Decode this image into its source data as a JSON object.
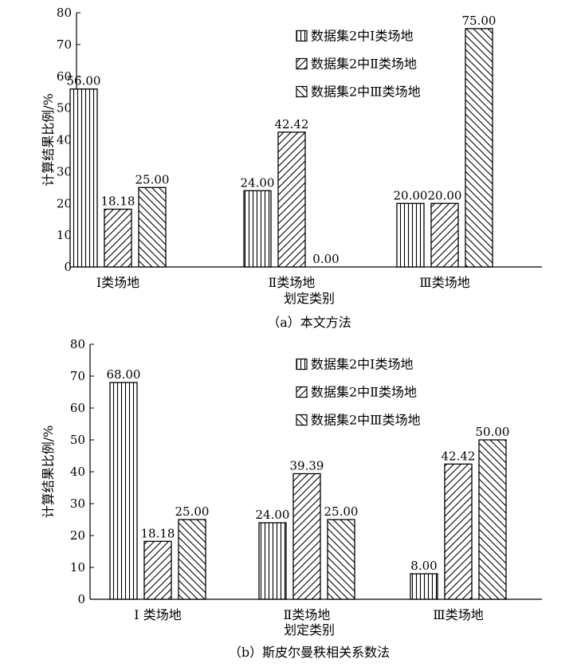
{
  "chart_data": [
    {
      "type": "bar",
      "caption": "（a）本文方法",
      "xlabel": "划定类别",
      "ylabel": "计算结果比例/%",
      "ylim": [
        0,
        80
      ],
      "yticks": [
        0,
        10,
        20,
        30,
        40,
        50,
        60,
        70,
        80
      ],
      "categories": [
        "Ⅰ类场地",
        "Ⅱ类场地",
        "Ⅲ类场地"
      ],
      "legend_position": "top-right",
      "series": [
        {
          "name": "数据集2中Ⅰ类场地",
          "pattern": "vertical",
          "values": [
            56.0,
            24.0,
            20.0
          ],
          "labels": [
            "56.00",
            "24.00",
            "20.00"
          ]
        },
        {
          "name": "数据集2中Ⅱ类场地",
          "pattern": "diag-forward",
          "values": [
            18.18,
            42.42,
            20.0
          ],
          "labels": [
            "18.18",
            "42.42",
            "20.00"
          ]
        },
        {
          "name": "数据集2中Ⅲ类场地",
          "pattern": "diag-back",
          "values": [
            25.0,
            0.0,
            75.0
          ],
          "labels": [
            "25.00",
            "0.00",
            "75.00"
          ]
        }
      ]
    },
    {
      "type": "bar",
      "caption": "（b）斯皮尔曼秩相关系数法",
      "xlabel": "划定类别",
      "ylabel": "计算结果比例/%",
      "ylim": [
        0,
        80
      ],
      "yticks": [
        0,
        10,
        20,
        30,
        40,
        50,
        60,
        70,
        80
      ],
      "categories": [
        "Ⅰ 类场地",
        "Ⅱ类场地",
        "Ⅲ类场地"
      ],
      "legend_position": "top-right",
      "series": [
        {
          "name": "数据集2中Ⅰ类场地",
          "pattern": "vertical",
          "values": [
            68.0,
            24.0,
            8.0
          ],
          "labels": [
            "68.00",
            "24.00",
            "8.00"
          ]
        },
        {
          "name": "数据集2中Ⅱ类场地",
          "pattern": "diag-forward",
          "values": [
            18.18,
            39.39,
            42.42
          ],
          "labels": [
            "18.18",
            "39.39",
            "42.42"
          ]
        },
        {
          "name": "数据集2中Ⅲ类场地",
          "pattern": "diag-back",
          "values": [
            25.0,
            25.0,
            50.0
          ],
          "labels": [
            "25.00",
            "25.00",
            "50.00"
          ]
        }
      ]
    }
  ]
}
